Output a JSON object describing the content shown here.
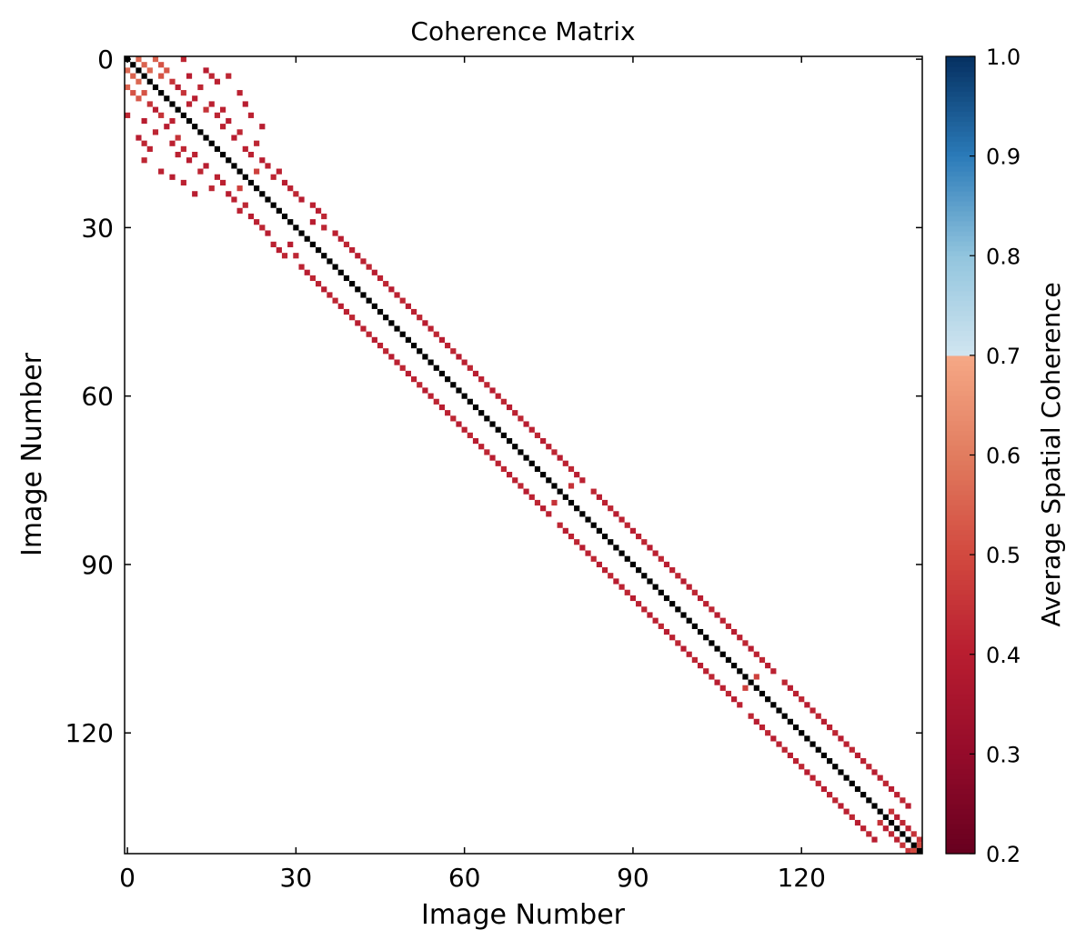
{
  "chart_data": {
    "type": "heatmap",
    "title": "Coherence Matrix",
    "xlabel": "Image Number",
    "ylabel": "Image Number",
    "n_images": 142,
    "xlim": [
      0,
      142
    ],
    "ylim": [
      0,
      142
    ],
    "x_ticks": [
      0,
      30,
      60,
      90,
      120
    ],
    "y_ticks": [
      0,
      30,
      60,
      90,
      120
    ],
    "x_tick_labels": [
      "0",
      "30",
      "60",
      "90",
      "120"
    ],
    "y_tick_labels": [
      "0",
      "30",
      "60",
      "90",
      "120"
    ],
    "colorbar": {
      "label": "Average Spatial Coherence",
      "range": [
        0.2,
        1.0
      ],
      "ticks": [
        0.2,
        0.3,
        0.4,
        0.5,
        0.6,
        0.7,
        0.8,
        0.9,
        1.0
      ],
      "tick_labels": [
        "0.2",
        "0.3",
        "0.4",
        "0.5",
        "0.6",
        "0.7",
        "0.8",
        "0.9",
        "1.0"
      ],
      "masked_range": [
        0.7,
        1.0
      ]
    },
    "diagonal_value": 1.0,
    "diagonal_color": "#000000",
    "colormap_stops": [
      {
        "value": 0.2,
        "color": "#67001f"
      },
      {
        "value": 0.3,
        "color": "#940b2a"
      },
      {
        "value": 0.4,
        "color": "#b81d30"
      },
      {
        "value": 0.5,
        "color": "#d2493f"
      },
      {
        "value": 0.6,
        "color": "#e17c5f"
      },
      {
        "value": 0.7,
        "color": "#f5a886"
      },
      {
        "value": 0.7001,
        "color": "#d1e5f0"
      },
      {
        "value": 0.8,
        "color": "#92c5de"
      },
      {
        "value": 0.9,
        "color": "#2b7bb9"
      },
      {
        "value": 1.0,
        "color": "#053061"
      }
    ],
    "cells": [
      [
        0,
        2,
        0.56
      ],
      [
        0,
        5,
        0.55
      ],
      [
        0,
        10,
        0.42
      ],
      [
        1,
        3,
        0.55
      ],
      [
        1,
        6,
        0.52
      ],
      [
        2,
        4,
        0.56
      ],
      [
        2,
        7,
        0.53
      ],
      [
        2,
        14,
        0.4
      ],
      [
        3,
        6,
        0.52
      ],
      [
        3,
        11,
        0.4
      ],
      [
        3,
        15,
        0.42
      ],
      [
        3,
        18,
        0.42
      ],
      [
        4,
        8,
        0.45
      ],
      [
        4,
        16,
        0.41
      ],
      [
        5,
        9,
        0.4
      ],
      [
        5,
        13,
        0.42
      ],
      [
        6,
        10,
        0.45
      ],
      [
        6,
        20,
        0.41
      ],
      [
        7,
        12,
        0.4
      ],
      [
        8,
        11,
        0.41
      ],
      [
        8,
        15,
        0.41
      ],
      [
        8,
        21,
        0.4
      ],
      [
        9,
        14,
        0.45
      ],
      [
        9,
        17,
        0.41
      ],
      [
        10,
        16,
        0.42
      ],
      [
        10,
        22,
        0.41
      ],
      [
        11,
        18,
        0.4
      ],
      [
        12,
        17,
        0.41
      ],
      [
        12,
        24,
        0.4
      ],
      [
        13,
        20,
        0.42
      ],
      [
        14,
        19,
        0.4
      ],
      [
        15,
        23,
        0.42
      ],
      [
        16,
        21,
        0.41
      ],
      [
        17,
        22,
        0.41
      ],
      [
        18,
        24,
        0.4
      ],
      [
        19,
        25,
        0.41
      ],
      [
        20,
        23,
        0.48
      ],
      [
        20,
        27,
        0.41
      ],
      [
        21,
        26,
        0.42
      ],
      [
        22,
        28,
        0.4
      ],
      [
        23,
        29,
        0.41
      ],
      [
        24,
        30,
        0.42
      ],
      [
        25,
        31,
        0.4
      ],
      [
        26,
        33,
        0.41
      ],
      [
        27,
        34,
        0.4
      ],
      [
        28,
        35,
        0.42
      ],
      [
        29,
        33,
        0.4
      ],
      [
        30,
        35,
        0.42
      ],
      [
        31,
        37,
        0.41
      ],
      [
        32,
        38,
        0.4
      ],
      [
        33,
        39,
        0.42
      ],
      [
        34,
        40,
        0.41
      ],
      [
        35,
        41,
        0.4
      ],
      [
        36,
        42,
        0.41
      ],
      [
        37,
        43,
        0.42
      ],
      [
        38,
        44,
        0.4
      ],
      [
        39,
        45,
        0.41
      ],
      [
        40,
        46,
        0.42
      ],
      [
        41,
        47,
        0.4
      ],
      [
        42,
        48,
        0.41
      ],
      [
        43,
        49,
        0.42
      ],
      [
        44,
        50,
        0.4
      ],
      [
        45,
        51,
        0.41
      ],
      [
        46,
        52,
        0.42
      ],
      [
        47,
        53,
        0.4
      ],
      [
        48,
        54,
        0.41
      ],
      [
        49,
        55,
        0.42
      ],
      [
        50,
        56,
        0.4
      ],
      [
        51,
        57,
        0.41
      ],
      [
        52,
        58,
        0.42
      ],
      [
        53,
        59,
        0.4
      ],
      [
        54,
        60,
        0.41
      ],
      [
        55,
        61,
        0.42
      ],
      [
        56,
        62,
        0.4
      ],
      [
        57,
        63,
        0.41
      ],
      [
        58,
        64,
        0.42
      ],
      [
        59,
        65,
        0.4
      ],
      [
        60,
        66,
        0.41
      ],
      [
        61,
        67,
        0.42
      ],
      [
        62,
        68,
        0.4
      ],
      [
        63,
        69,
        0.41
      ],
      [
        64,
        70,
        0.42
      ],
      [
        65,
        71,
        0.4
      ],
      [
        66,
        72,
        0.41
      ],
      [
        67,
        73,
        0.42
      ],
      [
        68,
        74,
        0.4
      ],
      [
        69,
        75,
        0.41
      ],
      [
        70,
        76,
        0.42
      ],
      [
        71,
        77,
        0.4
      ],
      [
        72,
        78,
        0.41
      ],
      [
        73,
        79,
        0.42
      ],
      [
        74,
        80,
        0.4
      ],
      [
        75,
        81,
        0.41
      ],
      [
        76,
        79,
        0.45
      ],
      [
        77,
        83,
        0.42
      ],
      [
        78,
        84,
        0.4
      ],
      [
        79,
        85,
        0.41
      ],
      [
        80,
        86,
        0.42
      ],
      [
        81,
        87,
        0.4
      ],
      [
        82,
        88,
        0.41
      ],
      [
        83,
        89,
        0.42
      ],
      [
        84,
        90,
        0.4
      ],
      [
        85,
        91,
        0.41
      ],
      [
        86,
        92,
        0.42
      ],
      [
        87,
        93,
        0.4
      ],
      [
        88,
        94,
        0.41
      ],
      [
        89,
        95,
        0.42
      ],
      [
        90,
        96,
        0.4
      ],
      [
        91,
        97,
        0.41
      ],
      [
        92,
        98,
        0.42
      ],
      [
        93,
        99,
        0.4
      ],
      [
        94,
        100,
        0.41
      ],
      [
        95,
        101,
        0.42
      ],
      [
        96,
        102,
        0.4
      ],
      [
        97,
        103,
        0.41
      ],
      [
        98,
        104,
        0.42
      ],
      [
        99,
        105,
        0.4
      ],
      [
        100,
        106,
        0.41
      ],
      [
        101,
        107,
        0.42
      ],
      [
        102,
        108,
        0.4
      ],
      [
        103,
        109,
        0.41
      ],
      [
        104,
        110,
        0.42
      ],
      [
        105,
        111,
        0.4
      ],
      [
        106,
        112,
        0.41
      ],
      [
        107,
        113,
        0.42
      ],
      [
        108,
        114,
        0.4
      ],
      [
        109,
        115,
        0.41
      ],
      [
        110,
        112,
        0.48
      ],
      [
        111,
        117,
        0.42
      ],
      [
        112,
        118,
        0.4
      ],
      [
        113,
        119,
        0.41
      ],
      [
        114,
        120,
        0.42
      ],
      [
        115,
        121,
        0.4
      ],
      [
        116,
        122,
        0.41
      ],
      [
        117,
        123,
        0.42
      ],
      [
        118,
        124,
        0.4
      ],
      [
        119,
        125,
        0.41
      ],
      [
        120,
        126,
        0.42
      ],
      [
        121,
        127,
        0.4
      ],
      [
        122,
        128,
        0.41
      ],
      [
        123,
        129,
        0.42
      ],
      [
        124,
        130,
        0.4
      ],
      [
        125,
        131,
        0.41
      ],
      [
        126,
        132,
        0.42
      ],
      [
        127,
        133,
        0.4
      ],
      [
        128,
        134,
        0.41
      ],
      [
        129,
        135,
        0.42
      ],
      [
        130,
        136,
        0.4
      ],
      [
        131,
        137,
        0.41
      ],
      [
        132,
        138,
        0.42
      ],
      [
        133,
        139,
        0.4
      ],
      [
        134,
        136,
        0.45
      ],
      [
        135,
        137,
        0.4
      ],
      [
        136,
        138,
        0.42
      ],
      [
        137,
        139,
        0.41
      ],
      [
        138,
        140,
        0.45
      ],
      [
        139,
        141,
        0.45
      ],
      [
        140,
        141,
        0.5
      ]
    ]
  }
}
